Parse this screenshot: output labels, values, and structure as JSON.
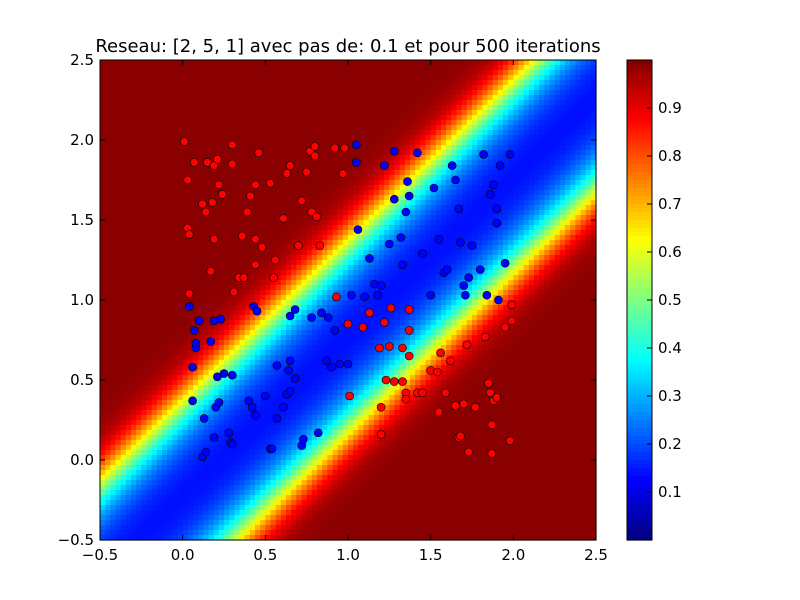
{
  "chart_data": {
    "type": "heatmap",
    "title": "Reseau: [2, 5, 1] avec pas de: 0.1 et pour 500 iterations",
    "xlabel": "",
    "ylabel": "",
    "xlim": [
      -0.5,
      2.5
    ],
    "ylim": [
      -0.5,
      2.5
    ],
    "x_ticks": [
      "−0.5",
      "0.0",
      "0.5",
      "1.0",
      "1.5",
      "2.0",
      "2.5"
    ],
    "y_ticks": [
      "−0.5",
      "0.0",
      "0.5",
      "1.0",
      "1.5",
      "2.0",
      "2.5"
    ],
    "x_tick_values": [
      -0.5,
      0.0,
      0.5,
      1.0,
      1.5,
      2.0,
      2.5
    ],
    "y_tick_values": [
      -0.5,
      0.0,
      0.5,
      1.0,
      1.5,
      2.0,
      2.5
    ],
    "colormap": "jet",
    "colorbar": {
      "range": [
        0.0,
        1.0
      ],
      "ticks": [
        "0.1",
        "0.2",
        "0.3",
        "0.4",
        "0.5",
        "0.6",
        "0.7",
        "0.8",
        "0.9"
      ],
      "tick_values": [
        0.1,
        0.2,
        0.3,
        0.4,
        0.5,
        0.6,
        0.7,
        0.8,
        0.9
      ]
    },
    "grid": false,
    "series": [
      {
        "color": "#ff0000",
        "points": [
          [
            0.01,
            1.99
          ],
          [
            0.03,
            1.75
          ],
          [
            0.07,
            1.86
          ],
          [
            0.12,
            1.6
          ],
          [
            0.14,
            1.55
          ],
          [
            0.15,
            1.86
          ],
          [
            0.18,
            1.61
          ],
          [
            0.19,
            1.84
          ],
          [
            0.21,
            1.88
          ],
          [
            0.22,
            1.72
          ],
          [
            0.24,
            1.66
          ],
          [
            0.3,
            1.85
          ],
          [
            0.3,
            1.97
          ],
          [
            0.36,
            1.4
          ],
          [
            0.39,
            1.55
          ],
          [
            0.41,
            1.65
          ],
          [
            0.44,
            1.72
          ],
          [
            0.46,
            1.92
          ],
          [
            0.53,
            1.73
          ],
          [
            0.63,
            1.79
          ],
          [
            0.65,
            1.84
          ],
          [
            0.72,
            1.62
          ],
          [
            0.75,
            1.8
          ],
          [
            0.77,
            1.93
          ],
          [
            0.8,
            1.9
          ],
          [
            0.8,
            1.96
          ],
          [
            0.78,
            1.55
          ],
          [
            0.81,
            1.52
          ],
          [
            0.92,
            1.95
          ],
          [
            0.98,
            1.95
          ],
          [
            0.97,
            1.79
          ],
          [
            0.61,
            1.51
          ],
          [
            0.44,
            1.38
          ],
          [
            0.48,
            1.33
          ],
          [
            0.56,
            1.25
          ],
          [
            0.03,
            1.45
          ],
          [
            0.04,
            1.41
          ],
          [
            0.19,
            1.38
          ],
          [
            0.17,
            1.18
          ],
          [
            0.34,
            1.14
          ],
          [
            0.37,
            1.14
          ],
          [
            0.44,
            1.22
          ],
          [
            0.31,
            1.05
          ],
          [
            0.55,
            1.14
          ],
          [
            0.7,
            1.34
          ],
          [
            0.83,
            1.34
          ],
          [
            0.93,
            1.02
          ],
          [
            1.0,
            0.85
          ],
          [
            1.09,
            0.83
          ],
          [
            1.13,
            0.92
          ],
          [
            1.19,
            0.7
          ],
          [
            1.22,
            0.86
          ],
          [
            1.26,
            0.95
          ],
          [
            1.25,
            0.71
          ],
          [
            1.33,
            0.7
          ],
          [
            1.37,
            0.81
          ],
          [
            1.37,
            0.94
          ],
          [
            1.37,
            0.65
          ],
          [
            1.28,
            0.49
          ],
          [
            1.33,
            0.49
          ],
          [
            1.23,
            0.5
          ],
          [
            1.2,
            0.33
          ],
          [
            1.2,
            0.16
          ],
          [
            1.35,
            0.42
          ],
          [
            1.35,
            0.38
          ],
          [
            1.42,
            0.42
          ],
          [
            1.45,
            0.42
          ],
          [
            1.5,
            0.56
          ],
          [
            1.54,
            0.55
          ],
          [
            1.55,
            0.3
          ],
          [
            1.56,
            0.67
          ],
          [
            1.59,
            0.42
          ],
          [
            1.62,
            0.62
          ],
          [
            1.65,
            0.34
          ],
          [
            1.67,
            0.14
          ],
          [
            1.68,
            0.15
          ],
          [
            1.7,
            0.35
          ],
          [
            1.72,
            0.72
          ],
          [
            1.73,
            0.05
          ],
          [
            1.77,
            0.33
          ],
          [
            1.83,
            0.77
          ],
          [
            1.85,
            0.48
          ],
          [
            1.86,
            0.42
          ],
          [
            1.87,
            0.04
          ],
          [
            1.87,
            0.22
          ],
          [
            1.88,
            0.37
          ],
          [
            1.9,
            0.39
          ],
          [
            1.95,
            0.83
          ],
          [
            1.98,
            0.12
          ],
          [
            1.99,
            0.87
          ],
          [
            1.99,
            0.97
          ],
          [
            1.01,
            0.4
          ],
          [
            0.04,
            1.04
          ]
        ]
      },
      {
        "color": "#0000ff",
        "points": [
          [
            0.04,
            0.96
          ],
          [
            0.06,
            0.58
          ],
          [
            0.07,
            0.81
          ],
          [
            0.08,
            0.7
          ],
          [
            0.08,
            0.73
          ],
          [
            0.1,
            0.87
          ],
          [
            0.06,
            0.37
          ],
          [
            0.12,
            0.02
          ],
          [
            0.13,
            0.26
          ],
          [
            0.14,
            0.05
          ],
          [
            0.17,
            0.74
          ],
          [
            0.19,
            0.87
          ],
          [
            0.2,
            0.33
          ],
          [
            0.21,
            0.52
          ],
          [
            0.22,
            0.36
          ],
          [
            0.19,
            0.14
          ],
          [
            0.23,
            0.88
          ],
          [
            0.25,
            0.54
          ],
          [
            0.28,
            0.17
          ],
          [
            0.3,
            0.53
          ],
          [
            0.29,
            0.11
          ],
          [
            0.3,
            0.1
          ],
          [
            0.4,
            0.37
          ],
          [
            0.42,
            0.33
          ],
          [
            0.43,
            0.96
          ],
          [
            0.45,
            0.93
          ],
          [
            0.44,
            0.28
          ],
          [
            0.5,
            0.4
          ],
          [
            0.53,
            0.07
          ],
          [
            0.54,
            0.07
          ],
          [
            0.57,
            0.59
          ],
          [
            0.57,
            0.26
          ],
          [
            0.61,
            0.33
          ],
          [
            0.63,
            0.41
          ],
          [
            0.65,
            0.43
          ],
          [
            0.64,
            0.56
          ],
          [
            0.65,
            0.9
          ],
          [
            0.65,
            0.62
          ],
          [
            0.68,
            0.94
          ],
          [
            0.68,
            0.51
          ],
          [
            0.72,
            0.09
          ],
          [
            0.73,
            0.13
          ],
          [
            0.78,
            0.89
          ],
          [
            0.82,
            0.17
          ],
          [
            0.84,
            0.92
          ],
          [
            0.87,
            0.62
          ],
          [
            0.88,
            0.89
          ],
          [
            0.9,
            0.58
          ],
          [
            0.92,
            0.81
          ],
          [
            0.95,
            0.6
          ],
          [
            1.0,
            0.6
          ],
          [
            1.02,
            1.03
          ],
          [
            1.05,
            1.86
          ],
          [
            1.05,
            1.97
          ],
          [
            1.06,
            1.44
          ],
          [
            1.1,
            1.02
          ],
          [
            1.13,
            1.26
          ],
          [
            1.16,
            1.1
          ],
          [
            1.18,
            1.03
          ],
          [
            1.2,
            1.09
          ],
          [
            1.22,
            1.84
          ],
          [
            1.25,
            1.35
          ],
          [
            1.28,
            1.63
          ],
          [
            1.28,
            1.93
          ],
          [
            1.32,
            1.39
          ],
          [
            1.33,
            1.22
          ],
          [
            1.35,
            1.55
          ],
          [
            1.36,
            1.74
          ],
          [
            1.37,
            1.65
          ],
          [
            1.42,
            1.92
          ],
          [
            1.45,
            1.29
          ],
          [
            1.5,
            1.03
          ],
          [
            1.52,
            1.7
          ],
          [
            1.55,
            1.38
          ],
          [
            1.58,
            1.17
          ],
          [
            1.6,
            1.19
          ],
          [
            1.63,
            1.84
          ],
          [
            1.65,
            1.75
          ],
          [
            1.67,
            1.57
          ],
          [
            1.68,
            1.36
          ],
          [
            1.7,
            1.09
          ],
          [
            1.71,
            1.03
          ],
          [
            1.73,
            1.14
          ],
          [
            1.75,
            1.34
          ],
          [
            1.8,
            1.19
          ],
          [
            1.82,
            1.91
          ],
          [
            1.84,
            1.03
          ],
          [
            1.86,
            1.66
          ],
          [
            1.88,
            1.72
          ],
          [
            1.9,
            1.57
          ],
          [
            1.9,
            1.48
          ],
          [
            1.91,
            1.0
          ],
          [
            1.92,
            1.84
          ],
          [
            1.95,
            1.23
          ],
          [
            1.98,
            1.91
          ]
        ]
      }
    ]
  }
}
